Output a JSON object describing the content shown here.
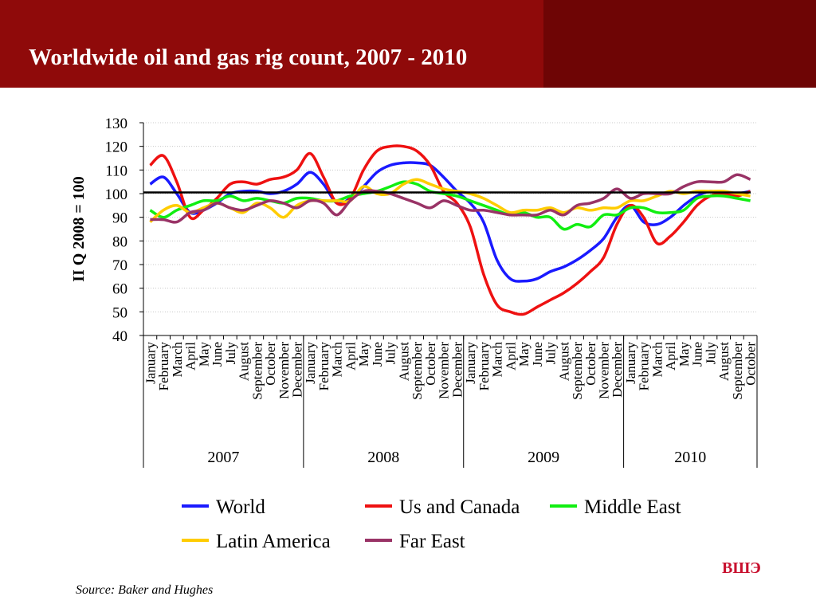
{
  "slide": {
    "title": "Worldwide oil and gas rig count, 2007 - 2010",
    "source": "Source: Baker and Hughes",
    "logo": "ВШЭ",
    "colors": {
      "header": "#8f0a0a",
      "header_dark": "#6e0505",
      "logo": "#c8102e"
    }
  },
  "chart_data": {
    "type": "line",
    "title": "",
    "ylabel": "II Q 2008 = 100",
    "xlabel": "",
    "ylim": [
      40,
      130
    ],
    "yticks": [
      130,
      120,
      110,
      100,
      90,
      80,
      70,
      60,
      50,
      40
    ],
    "grid": true,
    "legend_position": "bottom",
    "reference_line": {
      "value": 100.5,
      "color": "#000000"
    },
    "month_labels": [
      "January",
      "February",
      "March",
      "April",
      "May",
      "June",
      "July",
      "August",
      "September",
      "October",
      "November",
      "December",
      "January",
      "February",
      "March",
      "April",
      "May",
      "June",
      "July",
      "August",
      "September",
      "October",
      "November",
      "December",
      "January",
      "February",
      "March",
      "April",
      "May",
      "June",
      "July",
      "August",
      "September",
      "October",
      "November",
      "December",
      "January",
      "February",
      "March",
      "April",
      "May",
      "June",
      "July",
      "August",
      "September",
      "October"
    ],
    "year_groups": [
      {
        "label": "2007",
        "months": 12
      },
      {
        "label": "2008",
        "months": 12
      },
      {
        "label": "2009",
        "months": 12
      },
      {
        "label": "2010",
        "months": 10
      }
    ],
    "series": [
      {
        "name": "World",
        "color": "#1a1aff",
        "values": [
          104,
          107,
          100,
          92,
          93,
          96,
          100,
          101,
          101,
          100,
          101,
          104,
          109,
          104,
          96,
          98,
          103,
          109,
          112,
          113,
          113,
          112,
          107,
          101,
          96,
          88,
          72,
          64,
          63,
          64,
          67,
          69,
          72,
          76,
          81,
          90,
          95,
          88,
          87,
          90,
          95,
          99,
          101,
          100,
          100,
          101
        ]
      },
      {
        "name": "Us and Canada",
        "color": "#ee1111",
        "values": [
          112,
          116,
          105,
          90,
          93,
          98,
          104,
          105,
          104,
          106,
          107,
          110,
          117,
          107,
          96,
          98,
          110,
          118,
          120,
          120,
          118,
          112,
          101,
          96,
          86,
          66,
          53,
          50,
          49,
          52,
          55,
          58,
          62,
          67,
          73,
          87,
          95,
          90,
          79,
          82,
          88,
          95,
          99,
          100,
          99,
          101
        ]
      },
      {
        "name": "Middle East",
        "color": "#11ee11",
        "values": [
          93,
          90,
          93,
          95,
          97,
          97,
          99,
          97,
          98,
          97,
          96,
          98,
          98,
          97,
          97,
          99,
          100,
          101,
          103,
          105,
          104,
          101,
          100,
          99,
          97,
          95,
          93,
          91,
          92,
          90,
          90,
          85,
          87,
          86,
          91,
          91,
          94,
          94,
          92,
          92,
          93,
          98,
          99,
          99,
          98,
          97
        ]
      },
      {
        "name": "Latin America",
        "color": "#ffcc00",
        "values": [
          88,
          93,
          95,
          92,
          94,
          96,
          94,
          92,
          96,
          94,
          90,
          95,
          97,
          97,
          97,
          97,
          103,
          100,
          100,
          104,
          106,
          104,
          102,
          101,
          100,
          98,
          95,
          92,
          93,
          93,
          94,
          92,
          94,
          93,
          94,
          94,
          97,
          97,
          99,
          101,
          100,
          101,
          101,
          101,
          100,
          99
        ]
      },
      {
        "name": "Far East",
        "color": "#993366",
        "values": [
          89,
          89,
          88,
          92,
          93,
          96,
          94,
          93,
          95,
          97,
          96,
          94,
          97,
          96,
          91,
          97,
          101,
          101,
          100,
          98,
          96,
          94,
          97,
          95,
          93,
          93,
          92,
          91,
          91,
          91,
          93,
          91,
          95,
          96,
          98,
          102,
          98,
          100,
          100,
          100,
          103,
          105,
          105,
          105,
          108,
          106
        ]
      }
    ]
  }
}
